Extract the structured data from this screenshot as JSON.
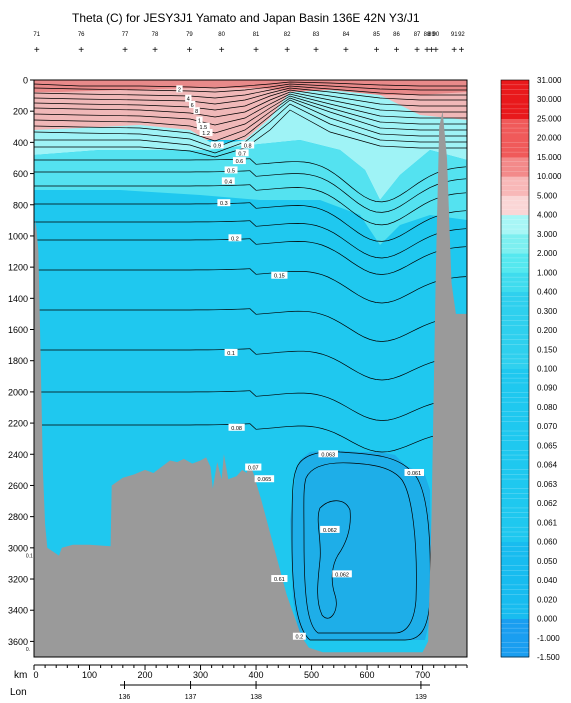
{
  "chart_data": {
    "type": "heatmap",
    "title": "Theta (C) for JESY3J1 Yamato and Japan Basin 136E 42N Y3/J1",
    "x_km_label": "km",
    "x_lon_label": "Lon",
    "xlim_km": [
      0,
      780
    ],
    "ylim_depth": [
      3700,
      0
    ],
    "y_ticks": [
      0,
      200,
      400,
      600,
      800,
      1000,
      1200,
      1400,
      1600,
      1800,
      2000,
      2200,
      2400,
      2600,
      2800,
      3000,
      3200,
      3400,
      3600
    ],
    "x_km_ticks": [
      0,
      100,
      200,
      300,
      400,
      500,
      600,
      700
    ],
    "lon_ticks": [
      {
        "label": "136",
        "km": 163
      },
      {
        "label": "137",
        "km": 282
      },
      {
        "label": "138",
        "km": 400
      },
      {
        "label": "139",
        "km": 697
      }
    ],
    "station_km": [
      5,
      85,
      164,
      218,
      280,
      338,
      400,
      456,
      508,
      562,
      617,
      653,
      690,
      708,
      716,
      724,
      757,
      770
    ],
    "station_ids": [
      "71",
      "76",
      "77",
      "78",
      "79",
      "80",
      "81",
      "82",
      "83",
      "84",
      "85",
      "86",
      "87",
      "88",
      "89",
      "90",
      "91",
      "92"
    ],
    "colorbar": {
      "levels": [
        -1.5,
        -1.0,
        0.0,
        0.02,
        0.04,
        0.05,
        0.06,
        0.061,
        0.062,
        0.063,
        0.064,
        0.065,
        0.07,
        0.08,
        0.09,
        0.1,
        0.15,
        0.2,
        0.3,
        0.4,
        1.0,
        2.0,
        3.0,
        4.0,
        5.0,
        10.0,
        15.0,
        20.0,
        25.0,
        30.0,
        31.0
      ],
      "labels": [
        "-1.500",
        "-1.000",
        "0.000",
        "0.020",
        "0.040",
        "0.050",
        "0.060",
        "0.061",
        "0.062",
        "0.063",
        "0.064",
        "0.065",
        "0.070",
        "0.080",
        "0.090",
        "0.100",
        "0.150",
        "0.200",
        "0.300",
        "0.400",
        "1.000",
        "2.000",
        "3.000",
        "4.000",
        "5.000",
        "10.000",
        "15.000",
        "20.000",
        "25.000",
        "30.000",
        "31.000"
      ]
    },
    "contour_labels": [
      {
        "text": "0.9",
        "km": 330,
        "depth": 420
      },
      {
        "text": "0.8",
        "km": 385,
        "depth": 420
      },
      {
        "text": "0.7",
        "km": 375,
        "depth": 470
      },
      {
        "text": "0.6",
        "km": 370,
        "depth": 520
      },
      {
        "text": "0.5",
        "km": 355,
        "depth": 580
      },
      {
        "text": "0.4",
        "km": 350,
        "depth": 650
      },
      {
        "text": "0.3",
        "km": 342,
        "depth": 790
      },
      {
        "text": "0.2",
        "km": 362,
        "depth": 1015
      },
      {
        "text": "0.15",
        "km": 442,
        "depth": 1255
      },
      {
        "text": "0.1",
        "km": 355,
        "depth": 1750
      },
      {
        "text": "0.08",
        "km": 365,
        "depth": 2230
      },
      {
        "text": "0.07",
        "km": 395,
        "depth": 2485
      },
      {
        "text": "0.065",
        "km": 415,
        "depth": 2560
      },
      {
        "text": "0.063",
        "km": 530,
        "depth": 2400
      },
      {
        "text": "0.061",
        "km": 685,
        "depth": 2520
      },
      {
        "text": "0.062",
        "km": 533,
        "depth": 2885
      },
      {
        "text": "0.062",
        "km": 555,
        "depth": 3170
      },
      {
        "text": "0.61",
        "km": 442,
        "depth": 3200
      },
      {
        "text": "0.2",
        "km": 478,
        "depth": 3570
      },
      {
        "text": "2",
        "km": 262,
        "depth": 60
      },
      {
        "text": "4",
        "km": 278,
        "depth": 120
      },
      {
        "text": "6",
        "km": 285,
        "depth": 160
      },
      {
        "text": "8",
        "km": 293,
        "depth": 200
      },
      {
        "text": "1",
        "km": 298,
        "depth": 260
      },
      {
        "text": "1.5",
        "km": 305,
        "depth": 300
      },
      {
        "text": "1.2",
        "km": 310,
        "depth": 340
      }
    ],
    "edge_labels": [
      {
        "text": "0.1",
        "km": -2,
        "depth": 3050
      },
      {
        "text": "0.",
        "km": -2,
        "depth": 3650
      }
    ],
    "bottom_profile": [
      [
        0,
        1000
      ],
      [
        3,
        900
      ],
      [
        8,
        1100
      ],
      [
        12,
        1800
      ],
      [
        16,
        2500
      ],
      [
        20,
        2850
      ],
      [
        24,
        3000
      ],
      [
        45,
        3050
      ],
      [
        50,
        3000
      ],
      [
        70,
        2980
      ],
      [
        100,
        2980
      ],
      [
        138,
        2990
      ],
      [
        140,
        2600
      ],
      [
        160,
        2550
      ],
      [
        180,
        2530
      ],
      [
        200,
        2500
      ],
      [
        215,
        2520
      ],
      [
        230,
        2480
      ],
      [
        245,
        2440
      ],
      [
        258,
        2450
      ],
      [
        270,
        2430
      ],
      [
        285,
        2460
      ],
      [
        300,
        2440
      ],
      [
        310,
        2420
      ],
      [
        318,
        2480
      ],
      [
        322,
        2620
      ],
      [
        330,
        2450
      ],
      [
        338,
        2560
      ],
      [
        342,
        2400
      ],
      [
        350,
        2560
      ],
      [
        365,
        2540
      ],
      [
        375,
        2500
      ],
      [
        383,
        2520
      ],
      [
        388,
        2460
      ],
      [
        395,
        2520
      ],
      [
        410,
        2700
      ],
      [
        425,
        2900
      ],
      [
        440,
        3100
      ],
      [
        455,
        3300
      ],
      [
        470,
        3450
      ],
      [
        482,
        3570
      ],
      [
        495,
        3640
      ],
      [
        520,
        3670
      ],
      [
        600,
        3670
      ],
      [
        700,
        3670
      ],
      [
        710,
        3600
      ],
      [
        716,
        2800
      ],
      [
        724,
        1200
      ],
      [
        730,
        300
      ],
      [
        736,
        200
      ],
      [
        744,
        500
      ],
      [
        752,
        1300
      ],
      [
        760,
        1500
      ],
      [
        770,
        1500
      ],
      [
        780,
        1500
      ]
    ]
  }
}
